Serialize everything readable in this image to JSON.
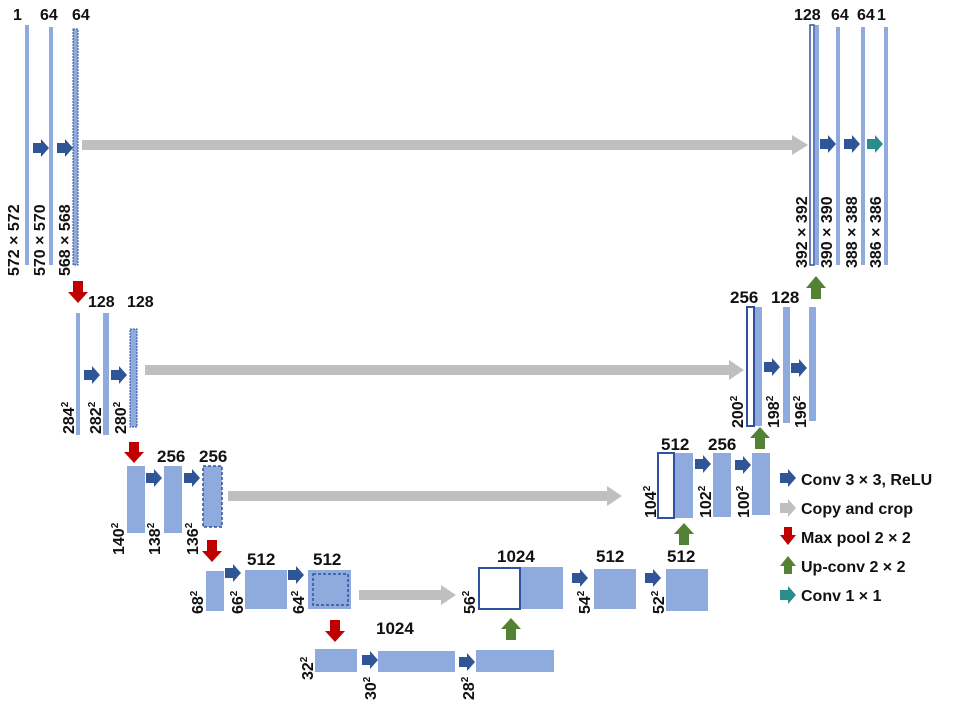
{
  "colors": {
    "map": "#8faadc",
    "map_border": "#2f52a0",
    "conv_arrow": "#2f5597",
    "copy_arrow": "#bfbfbf",
    "pool_arrow": "#c00000",
    "upconv_arrow": "#548235",
    "conv1_arrow": "#2a8c8c"
  },
  "levels": {
    "l1": {
      "channels": [
        "1",
        "64",
        "64"
      ],
      "sizes": [
        "572 × 572",
        "570 × 570",
        "568 × 568"
      ]
    },
    "l2": {
      "channels": [
        "128",
        "128"
      ],
      "sizes": [
        "284",
        "282",
        "280"
      ]
    },
    "l3": {
      "channels": [
        "256",
        "256"
      ],
      "sizes": [
        "140",
        "138",
        "136"
      ]
    },
    "l4": {
      "channels": [
        "512",
        "512"
      ],
      "sizes": [
        "68",
        "66",
        "64"
      ]
    },
    "l5": {
      "channels": [
        "1024"
      ],
      "sizes": [
        "32",
        "30",
        "28"
      ]
    },
    "r4": {
      "channels": [
        "1024",
        "512",
        "512"
      ],
      "sizes": [
        "56",
        "54",
        "52"
      ]
    },
    "r3": {
      "channels": [
        "512",
        "256"
      ],
      "sizes": [
        "104",
        "102",
        "100"
      ]
    },
    "r2": {
      "channels": [
        "256",
        "128"
      ],
      "sizes": [
        "200",
        "198",
        "196"
      ]
    },
    "r1": {
      "channels": [
        "128",
        "64",
        "64",
        "1"
      ],
      "sizes": [
        "392 × 392",
        "390 × 390",
        "388 × 388",
        "386 × 386"
      ]
    }
  },
  "superscript": "2",
  "legend": {
    "conv": "Conv 3 × 3, ReLU",
    "copy": "Copy and crop",
    "pool": "Max pool 2 × 2",
    "upconv": "Up-conv 2 × 2",
    "conv1": "Conv 1 × 1"
  }
}
